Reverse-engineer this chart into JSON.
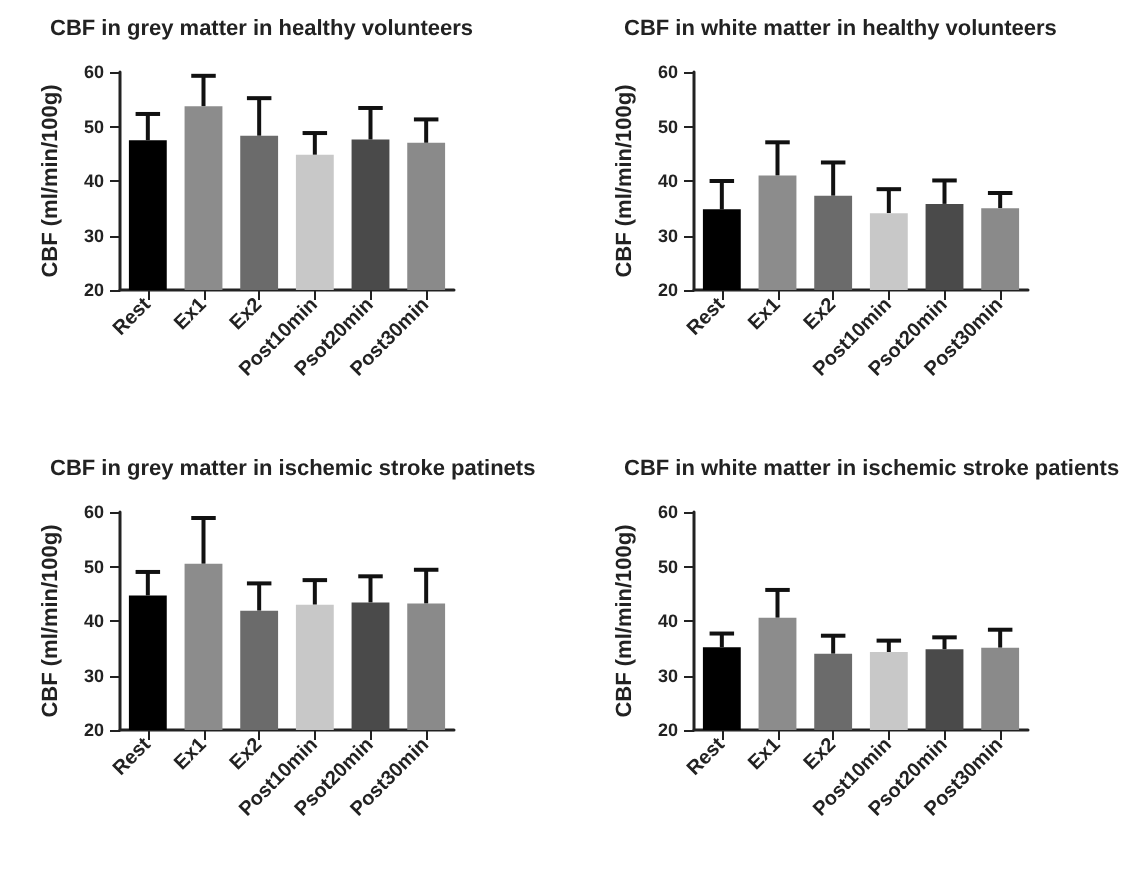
{
  "chart_data": [
    {
      "type": "bar",
      "title": "CBF in grey matter in healthy volunteers",
      "ylabel": "CBF (ml/min/100g)",
      "categories": [
        "Rest",
        "Ex1",
        "Ex2",
        "Post10min",
        "Psot20min",
        "Post30min"
      ],
      "values": [
        47.5,
        53.7,
        48.3,
        44.8,
        47.6,
        47.0
      ],
      "errors": [
        [
          47.5,
          52.3
        ],
        [
          53.7,
          59.3
        ],
        [
          48.3,
          55.2
        ],
        [
          44.8,
          48.8
        ],
        [
          47.6,
          53.4
        ],
        [
          47.0,
          51.3
        ]
      ],
      "colors": [
        "#000000",
        "#8c8c8c",
        "#6b6b6b",
        "#c8c8c8",
        "#4a4a4a",
        "#8a8a8a"
      ],
      "ylim": [
        20,
        60
      ],
      "yticks": [
        20,
        30,
        40,
        50,
        60
      ]
    },
    {
      "type": "bar",
      "title": "CBF in white matter in healthy volunteers",
      "ylabel": "CBF (ml/min/100g)",
      "categories": [
        "Rest",
        "Ex1",
        "Ex2",
        "Post10min",
        "Psot20min",
        "Post30min"
      ],
      "values": [
        34.8,
        41.0,
        37.3,
        34.1,
        35.8,
        35.0
      ],
      "errors": [
        [
          34.8,
          40.0
        ],
        [
          41.0,
          47.1
        ],
        [
          37.3,
          43.4
        ],
        [
          34.1,
          38.5
        ],
        [
          35.8,
          40.1
        ],
        [
          35.0,
          37.8
        ]
      ],
      "colors": [
        "#000000",
        "#8c8c8c",
        "#6b6b6b",
        "#c8c8c8",
        "#4a4a4a",
        "#8a8a8a"
      ],
      "ylim": [
        20,
        60
      ],
      "yticks": [
        20,
        30,
        40,
        50,
        60
      ]
    },
    {
      "type": "bar",
      "title": "CBF in grey matter in ischemic stroke patinets",
      "ylabel": "CBF (ml/min/100g)",
      "categories": [
        "Rest",
        "Ex1",
        "Ex2",
        "Post10min",
        "Psot20min",
        "Post30min"
      ],
      "values": [
        44.7,
        50.5,
        41.9,
        43.0,
        43.4,
        43.2
      ],
      "errors": [
        [
          44.7,
          49.0
        ],
        [
          50.5,
          58.9
        ],
        [
          41.9,
          46.9
        ],
        [
          43.0,
          47.5
        ],
        [
          43.4,
          48.2
        ],
        [
          43.2,
          49.4
        ]
      ],
      "colors": [
        "#000000",
        "#8c8c8c",
        "#6b6b6b",
        "#c8c8c8",
        "#4a4a4a",
        "#8a8a8a"
      ],
      "ylim": [
        20,
        60
      ],
      "yticks": [
        20,
        30,
        40,
        50,
        60
      ]
    },
    {
      "type": "bar",
      "title": "CBF in white matter in ischemic stroke patients",
      "ylabel": "CBF (ml/min/100g)",
      "categories": [
        "Rest",
        "Ex1",
        "Ex2",
        "Post10min",
        "Psot20min",
        "Post30min"
      ],
      "values": [
        35.2,
        40.6,
        34.0,
        34.3,
        34.8,
        35.1
      ],
      "errors": [
        [
          35.2,
          37.7
        ],
        [
          40.6,
          45.7
        ],
        [
          34.0,
          37.3
        ],
        [
          34.3,
          36.4
        ],
        [
          34.8,
          37.0
        ],
        [
          35.1,
          38.4
        ]
      ],
      "colors": [
        "#000000",
        "#8c8c8c",
        "#6b6b6b",
        "#c8c8c8",
        "#4a4a4a",
        "#8a8a8a"
      ],
      "ylim": [
        20,
        60
      ],
      "yticks": [
        20,
        30,
        40,
        50,
        60
      ]
    }
  ]
}
